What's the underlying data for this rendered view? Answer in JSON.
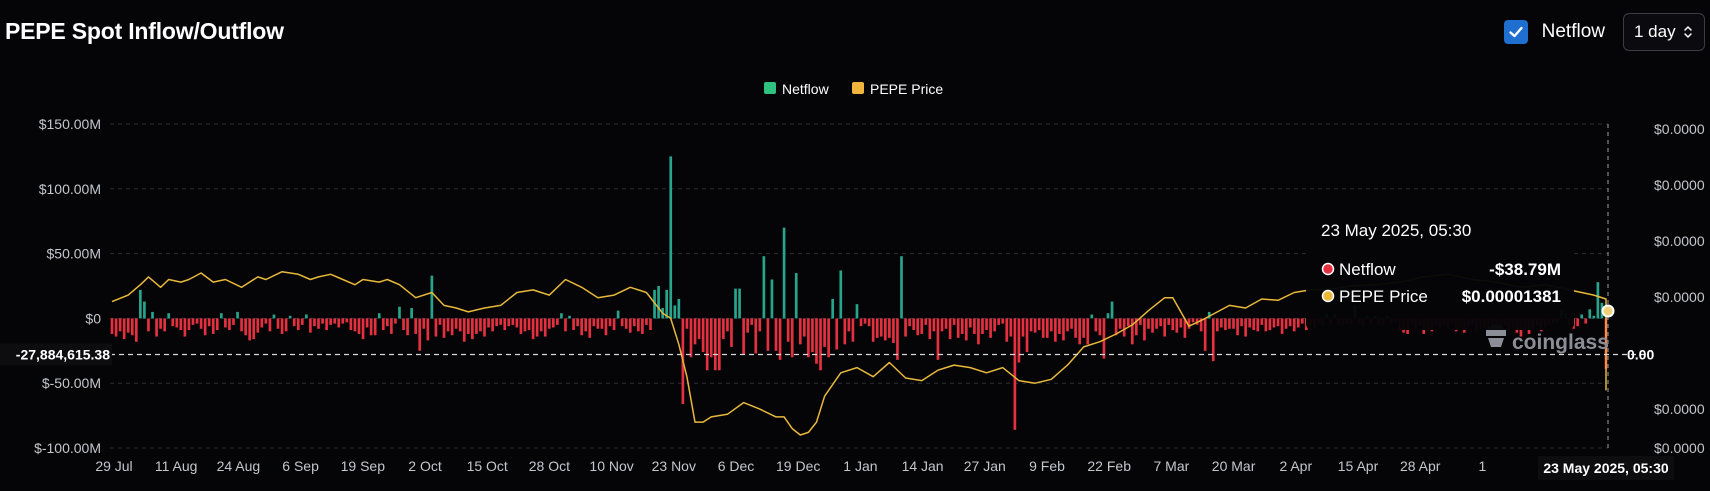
{
  "title": "PEPE Spot Inflow/Outflow",
  "controls": {
    "netflow_label": "Netflow",
    "netflow_checked": true,
    "period_value": "1 day"
  },
  "watermark": "coinglass",
  "colors": {
    "background": "#050507",
    "inflow": "#27a58c",
    "outflow": "#e5303f",
    "price": "#e8b83a",
    "legend_netflow": "#2ec27e",
    "legend_price": "#f2b53c",
    "checkbox": "#1f6fd1"
  },
  "chart_data": {
    "type": "bar",
    "title": "PEPE Spot Inflow/Outflow",
    "legend": [
      "Netflow",
      "PEPE Price"
    ],
    "legend_position": "top-center",
    "grid": true,
    "x_tick_labels": [
      "29 Jul",
      "11 Aug",
      "24 Aug",
      "6 Sep",
      "19 Sep",
      "2 Oct",
      "15 Oct",
      "28 Oct",
      "10 Nov",
      "23 Nov",
      "6 Dec",
      "19 Dec",
      "1 Jan",
      "14 Jan",
      "27 Jan",
      "9 Feb",
      "22 Feb",
      "7 Mar",
      "20 Mar",
      "2 Apr",
      "15 Apr",
      "28 Apr",
      "1"
    ],
    "y_left": {
      "ticks": [
        150,
        100,
        50,
        0,
        -50,
        -100
      ],
      "tick_labels": [
        "$150.00M",
        "$100.00M",
        "$50.00M",
        "$0",
        "$-50.00M",
        "$-100.00M"
      ],
      "range": [
        -100,
        150
      ],
      "unit": "USD millions"
    },
    "y_right": {
      "tick_labels": [
        "$0.0000",
        "$0.0000",
        "$0.0000",
        "$0.0000",
        "$0.0000",
        "$0.0000"
      ]
    },
    "crosshair": {
      "y_label": "-27,884,615.38",
      "x_label": "23 May 2025, 05:30",
      "right_label": "0.00"
    },
    "tooltip": {
      "title": "23 May 2025, 05:30",
      "rows": [
        {
          "label": "Netflow",
          "value": "-$38.79M"
        },
        {
          "label": "PEPE Price",
          "value": "$0.00001381"
        }
      ]
    },
    "series": [
      {
        "name": "Netflow",
        "type": "bar",
        "values": [
          -12,
          -14,
          -10,
          -16,
          -11,
          -13,
          -18,
          22,
          13,
          -10,
          5,
          -14,
          -8,
          -10,
          4,
          -6,
          -7,
          -9,
          -14,
          -9,
          -5,
          -4,
          -8,
          -13,
          -6,
          -12,
          -9,
          4,
          -7,
          -9,
          -5,
          5,
          -10,
          -13,
          -17,
          -16,
          -11,
          -7,
          -4,
          -10,
          3,
          -8,
          -12,
          -10,
          2,
          -6,
          -9,
          -5,
          3,
          -11,
          -6,
          -8,
          -4,
          -9,
          -5,
          -4,
          -7,
          -4,
          -3,
          -9,
          -10,
          -12,
          -16,
          -7,
          -13,
          -13,
          4,
          -9,
          -6,
          -12,
          -4,
          9,
          -9,
          -13,
          8,
          -12,
          -25,
          -8,
          -17,
          33,
          -14,
          -5,
          -15,
          -10,
          -13,
          -8,
          -10,
          -18,
          -12,
          -16,
          -12,
          -10,
          -14,
          -7,
          -10,
          -6,
          -5,
          -9,
          -6,
          -5,
          -7,
          -12,
          -10,
          -9,
          -16,
          -14,
          -10,
          -14,
          -8,
          -7,
          -5,
          4,
          -10,
          2,
          -9,
          -6,
          -13,
          -10,
          -15,
          -6,
          -8,
          -8,
          -13,
          -6,
          -9,
          6,
          -6,
          -8,
          -11,
          -6,
          -10,
          -12,
          -5,
          -9,
          22,
          25,
          8,
          22,
          125,
          10,
          15,
          -66,
          -8,
          -30,
          -20,
          -16,
          -26,
          -40,
          -30,
          -40,
          -40,
          -16,
          -10,
          -22,
          23,
          23,
          -28,
          -11,
          -5,
          -27,
          -10,
          48,
          -25,
          30,
          -25,
          -32,
          70,
          -18,
          -30,
          35,
          -20,
          -14,
          -30,
          -26,
          -35,
          -40,
          -22,
          -30,
          15,
          -24,
          37,
          -20,
          -10,
          -18,
          11,
          -6,
          -4,
          -6,
          -18,
          -15,
          -14,
          -17,
          -15,
          -19,
          -32,
          48,
          -14,
          -6,
          -9,
          -13,
          -12,
          -5,
          -16,
          -10,
          -32,
          -10,
          -8,
          -16,
          -5,
          -15,
          -12,
          -17,
          -7,
          -12,
          -20,
          -12,
          -9,
          -15,
          -10,
          -5,
          -4,
          -18,
          -14,
          -86,
          -34,
          -14,
          -26,
          -10,
          -11,
          -9,
          -15,
          -15,
          -10,
          -18,
          -12,
          -17,
          -10,
          -8,
          -15,
          -20,
          -15,
          -20,
          3,
          -10,
          -13,
          -31,
          4,
          13,
          -13,
          -8,
          -14,
          -6,
          -20,
          -13,
          -5,
          -17,
          -8,
          -11,
          -8,
          -6,
          -14,
          -5,
          -9,
          -11,
          -7,
          -15,
          -8,
          -3,
          -5,
          -10,
          -25,
          5,
          -33,
          -10,
          -7,
          -9,
          -8,
          -8,
          -13,
          -6,
          -14,
          -7,
          -9,
          -10,
          -5,
          -10,
          -9,
          -7,
          -6,
          -12,
          -8,
          -6,
          -10,
          -7,
          -4,
          -9,
          -5,
          -8,
          -4,
          -6,
          4,
          -5,
          4,
          -5,
          -6,
          -4,
          -5,
          10,
          -4,
          -6,
          2,
          -4,
          2,
          -5,
          -6,
          2,
          -4,
          -3,
          -9,
          -11,
          -12,
          -5,
          -8,
          -6,
          -12,
          -9,
          -10,
          -6,
          -7,
          -5,
          -8,
          -4,
          -10,
          -7,
          -11,
          -6,
          -5,
          -9,
          -8,
          -7,
          -12,
          -6,
          -10,
          -8,
          -6,
          -9,
          -7,
          -11,
          -14,
          -9,
          -12,
          -8,
          -6,
          -10,
          -7,
          -5,
          -4,
          -3,
          6,
          4,
          -5,
          -8,
          -6,
          3,
          -4,
          7,
          2,
          28,
          12,
          -39
        ]
      },
      {
        "name": "PEPE Price",
        "type": "line",
        "anchors_x_index": [
          0,
          4,
          7,
          9,
          12,
          14,
          17,
          19,
          22,
          25,
          28,
          32,
          36,
          38,
          42,
          46,
          49,
          51,
          54,
          57,
          60,
          62,
          66,
          68,
          71,
          75,
          79,
          82,
          85,
          88,
          92,
          96,
          100,
          104,
          108,
          112,
          116,
          120,
          124,
          128,
          132,
          136,
          138,
          140,
          142,
          144,
          146,
          148,
          152,
          156,
          160,
          164,
          166,
          168,
          170,
          172,
          174,
          176,
          180,
          184,
          188,
          192,
          196,
          200,
          204,
          206,
          208,
          212,
          216,
          220,
          224,
          228,
          232,
          236,
          240,
          244,
          248,
          252,
          256,
          260,
          262,
          266,
          270,
          276,
          280,
          284,
          288,
          292,
          296,
          300,
          306,
          312,
          318,
          324,
          330,
          336,
          342,
          348,
          354,
          360,
          366,
          370,
          372,
          375,
          378,
          380,
          382,
          384,
          386,
          388,
          390
        ],
        "anchors_value": [
          13,
          18,
          26,
          32,
          24,
          30,
          28,
          30,
          35,
          28,
          30,
          24,
          32,
          30,
          36,
          34,
          30,
          32,
          34,
          30,
          26,
          30,
          28,
          30,
          26,
          16,
          20,
          10,
          8,
          5,
          8,
          10,
          20,
          22,
          18,
          30,
          24,
          16,
          18,
          24,
          20,
          4,
          0,
          -20,
          -45,
          -80,
          -80,
          -76,
          -74,
          -65,
          -70,
          -76,
          -76,
          -85,
          -90,
          -88,
          -80,
          -60,
          -42,
          -38,
          -45,
          -34,
          -46,
          -48,
          -40,
          -38,
          -36,
          -38,
          -42,
          -38,
          -48,
          -50,
          -47,
          -36,
          -22,
          -18,
          -12,
          -5,
          6,
          16,
          16,
          -6,
          0,
          10,
          8,
          15,
          14,
          20,
          22,
          22,
          25,
          26,
          28,
          32,
          34,
          30,
          28,
          24,
          26,
          22,
          18,
          15,
          12,
          10,
          2,
          -10,
          -35,
          -50,
          -55,
          -52,
          -42
        ]
      }
    ]
  }
}
